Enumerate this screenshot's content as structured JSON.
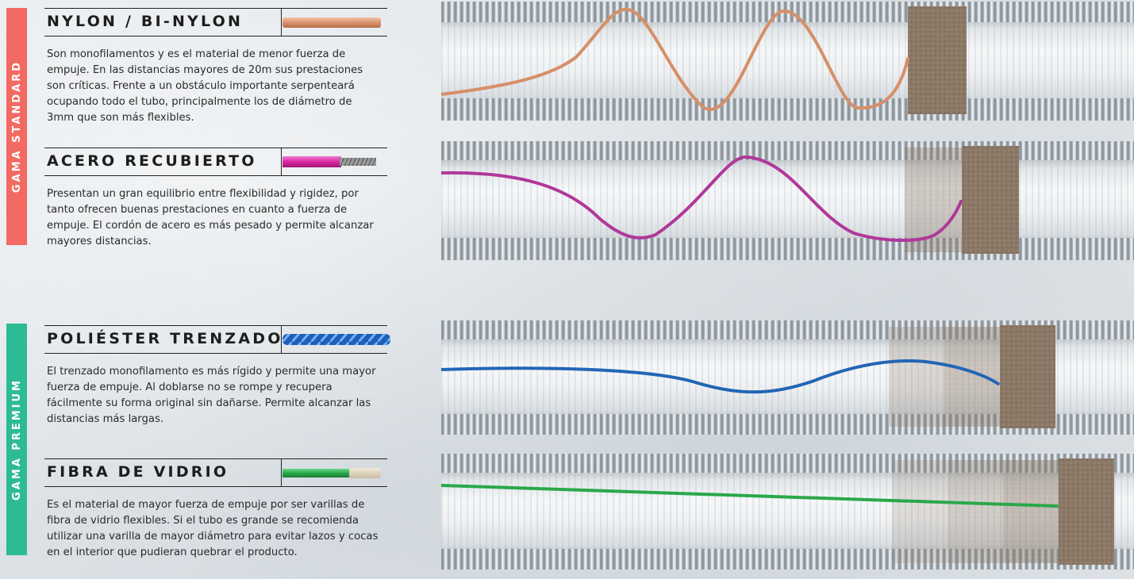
{
  "bands": {
    "standard": "GAMA STANDARD",
    "premium": "GAMA PREMIUM"
  },
  "sections": [
    {
      "title": "NYLON / BI-NYLON",
      "description": "Son monofilamentos y es el material de menor fuerza de empuje. En las distancias mayores de 20m sus prestaciones son críticas. Frente a un obstáculo importante serpenteará ocupando todo el tubo, principalmente los de diámetro de 3mm que son más flexibles.",
      "rod_color": "#d68f69"
    },
    {
      "title": "ACERO RECUBIERTO",
      "description": "Presentan un gran equilibrio entre flexibilidad y rigidez, por tanto ofrecen buenas prestaciones en cuanto a fuerza de empuje. El cordón de acero es más pesado y permite alcanzar mayores distancias.",
      "rod_color": "#b0389a"
    },
    {
      "title": "POLIÉSTER TRENZADO",
      "description": "El trenzado monofilamento es más rígido y permite una mayor fuerza de empuje. Al doblarse no se rompe y recupera fácilmente su forma original sin dañarse. Permite alcanzar las distancias más largas.",
      "rod_color": "#2266b5"
    },
    {
      "title": "FIBRA DE VIDRIO",
      "description": "Es el material de mayor fuerza de empuje por ser varillas de fibra de vidrio flexibles. Si el tubo es grande se recomienda utilizar una varilla de mayor diámetro para evitar lazos y cocas en el interior que pudieran quebrar el producto.",
      "rod_color": "#2aa84a"
    }
  ],
  "colors": {
    "standard_band": "#f26a62",
    "premium_band": "#2dbb95",
    "obstacle": "#8b7866"
  }
}
